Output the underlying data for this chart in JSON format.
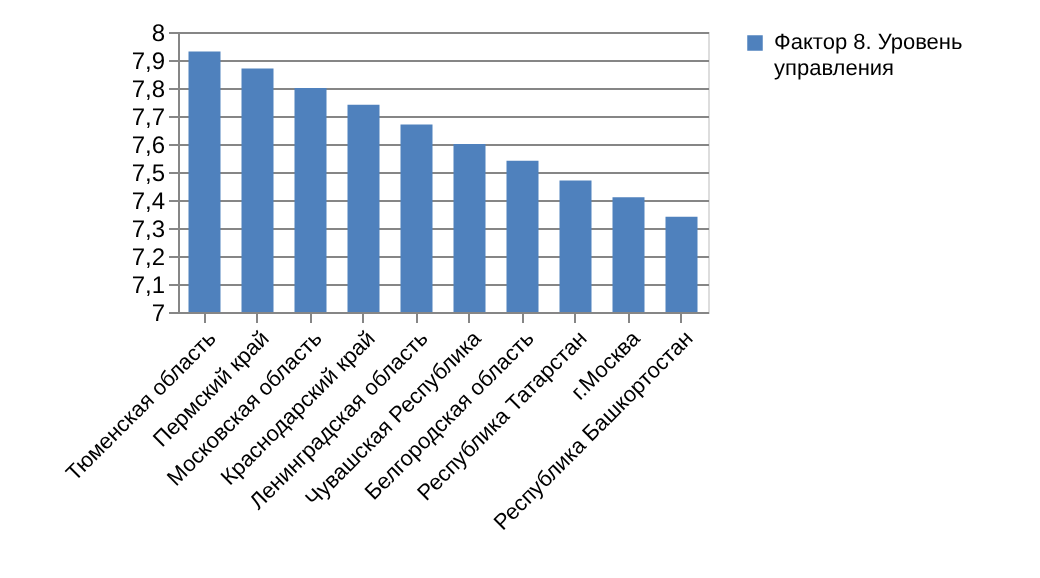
{
  "chart_data": {
    "type": "bar",
    "categories": [
      "Тюменская область",
      "Пермский край",
      "Московская область",
      "Краснодарский край",
      "Ленинградская область",
      "Чувашская Республика",
      "Белгородская область",
      "Республика Татарстан",
      "г.Москва",
      "Республика Башкортостан"
    ],
    "series": [
      {
        "name": "Фактор 8. Уровень управления",
        "color": "#4f81bd",
        "values": [
          7.93,
          7.87,
          7.8,
          7.74,
          7.67,
          7.6,
          7.54,
          7.47,
          7.41,
          7.34
        ]
      }
    ],
    "ylim": [
      7,
      8
    ],
    "yticks": [
      7,
      {
        "value": 7.1,
        "label": "7,1"
      },
      {
        "value": 7.2,
        "label": "7,2"
      },
      {
        "value": 7.3,
        "label": "7,3"
      },
      {
        "value": 7.4,
        "label": "7,4"
      },
      {
        "value": 7.5,
        "label": "7,5"
      },
      {
        "value": 7.6,
        "label": "7,6"
      },
      {
        "value": 7.7,
        "label": "7,7"
      },
      {
        "value": 7.8,
        "label": "7,8"
      },
      {
        "value": 7.9,
        "label": "7,9"
      },
      8
    ],
    "grid": "y",
    "legend": "right"
  }
}
